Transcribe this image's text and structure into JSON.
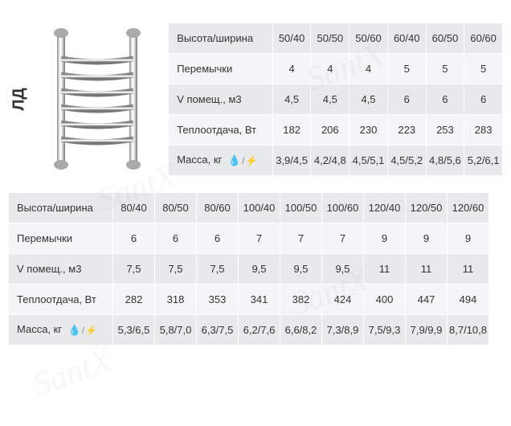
{
  "model_label": "ЛД",
  "watermark_text": "SantX",
  "icons": {
    "drop": "💧",
    "slash": "/",
    "bolt": "⚡"
  },
  "table1": {
    "headers": [
      "Высота/ширина",
      "Перемычки",
      "V помещ., м3",
      "Теплоотдача, Вт",
      "Масса, кг"
    ],
    "columns": [
      "50/40",
      "50/50",
      "50/60",
      "60/40",
      "60/50",
      "60/60"
    ],
    "rows": [
      [
        "4",
        "4",
        "4",
        "5",
        "5",
        "5"
      ],
      [
        "4,5",
        "4,5",
        "4,5",
        "6",
        "6",
        "6"
      ],
      [
        "182",
        "206",
        "230",
        "223",
        "253",
        "283"
      ],
      [
        "3,9/4,5",
        "4,2/4,8",
        "4,5/5,1",
        "4,5/5,2",
        "4,8/5,6",
        "5,2/6,1"
      ]
    ]
  },
  "table2": {
    "headers": [
      "Высота/ширина",
      "Перемычки",
      "V помещ., м3",
      "Теплоотдача, Вт",
      "Масса, кг"
    ],
    "columns": [
      "80/40",
      "80/50",
      "80/60",
      "100/40",
      "100/50",
      "100/60",
      "120/40",
      "120/50",
      "120/60"
    ],
    "rows": [
      [
        "6",
        "6",
        "6",
        "7",
        "7",
        "7",
        "9",
        "9",
        "9"
      ],
      [
        "7,5",
        "7,5",
        "7,5",
        "9,5",
        "9,5",
        "9,5",
        "11",
        "11",
        "11"
      ],
      [
        "282",
        "318",
        "353",
        "341",
        "382",
        "424",
        "400",
        "447",
        "494"
      ],
      [
        "5,3/6,5",
        "5,8/7,0",
        "6,3/7,5",
        "6,2/7,6",
        "6,6/8,2",
        "7,3/8,9",
        "7,5/9,3",
        "7,9/9,9",
        "8,7/10,8"
      ]
    ]
  },
  "colors": {
    "row_odd": "#e7e9ea",
    "row_even": "#f4f5f6",
    "text": "#333333",
    "drop": "#1976d2",
    "bolt": "#d32f2f"
  }
}
